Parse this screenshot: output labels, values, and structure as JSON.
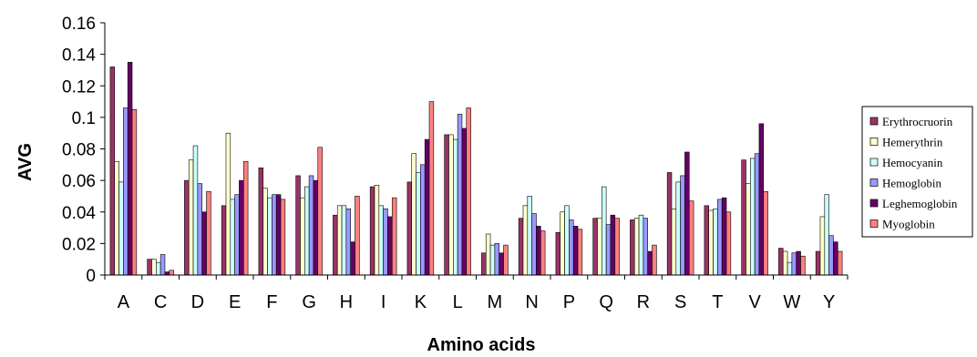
{
  "chart_data": {
    "type": "bar",
    "title": "",
    "xlabel": "Amino acids",
    "ylabel": "AVG",
    "ylim": [
      0,
      0.16
    ],
    "yticks": [
      "0",
      "0.02",
      "0.04",
      "0.06",
      "0.08",
      "0.1",
      "0.12",
      "0.14",
      "0.16"
    ],
    "grid": false,
    "legend_position": "right",
    "categories": [
      "A",
      "C",
      "D",
      "E",
      "F",
      "G",
      "H",
      "I",
      "K",
      "L",
      "M",
      "N",
      "P",
      "Q",
      "R",
      "S",
      "T",
      "V",
      "W",
      "Y"
    ],
    "series": [
      {
        "name": "Erythrocruorin",
        "color": "#993366",
        "values": [
          0.132,
          0.01,
          0.06,
          0.044,
          0.068,
          0.063,
          0.038,
          0.056,
          0.059,
          0.089,
          0.014,
          0.036,
          0.027,
          0.036,
          0.035,
          0.065,
          0.044,
          0.073,
          0.017,
          0.015
        ]
      },
      {
        "name": "Hemerythrin",
        "color": "#FFFFCC",
        "values": [
          0.072,
          0.01,
          0.073,
          0.09,
          0.055,
          0.049,
          0.044,
          0.057,
          0.077,
          0.089,
          0.026,
          0.044,
          0.04,
          0.036,
          0.036,
          0.042,
          0.041,
          0.058,
          0.015,
          0.037
        ]
      },
      {
        "name": "Hemocyanin",
        "color": "#CCFFFF",
        "values": [
          0.059,
          0.008,
          0.082,
          0.048,
          0.049,
          0.056,
          0.044,
          0.044,
          0.065,
          0.086,
          0.019,
          0.05,
          0.044,
          0.056,
          0.038,
          0.059,
          0.042,
          0.074,
          0.008,
          0.051
        ]
      },
      {
        "name": "Hemoglobin",
        "color": "#9999FF",
        "values": [
          0.106,
          0.013,
          0.058,
          0.051,
          0.051,
          0.063,
          0.042,
          0.042,
          0.07,
          0.102,
          0.02,
          0.039,
          0.035,
          0.032,
          0.036,
          0.063,
          0.048,
          0.077,
          0.014,
          0.025
        ]
      },
      {
        "name": "Leghemoglobin",
        "color": "#660066",
        "values": [
          0.135,
          0.002,
          0.04,
          0.06,
          0.051,
          0.06,
          0.021,
          0.037,
          0.086,
          0.093,
          0.014,
          0.031,
          0.031,
          0.038,
          0.015,
          0.078,
          0.049,
          0.096,
          0.015,
          0.021
        ]
      },
      {
        "name": "Myoglobin",
        "color": "#FF8080",
        "values": [
          0.105,
          0.003,
          0.053,
          0.072,
          0.048,
          0.081,
          0.05,
          0.049,
          0.11,
          0.106,
          0.019,
          0.028,
          0.029,
          0.036,
          0.019,
          0.047,
          0.04,
          0.053,
          0.012,
          0.015
        ]
      }
    ]
  }
}
